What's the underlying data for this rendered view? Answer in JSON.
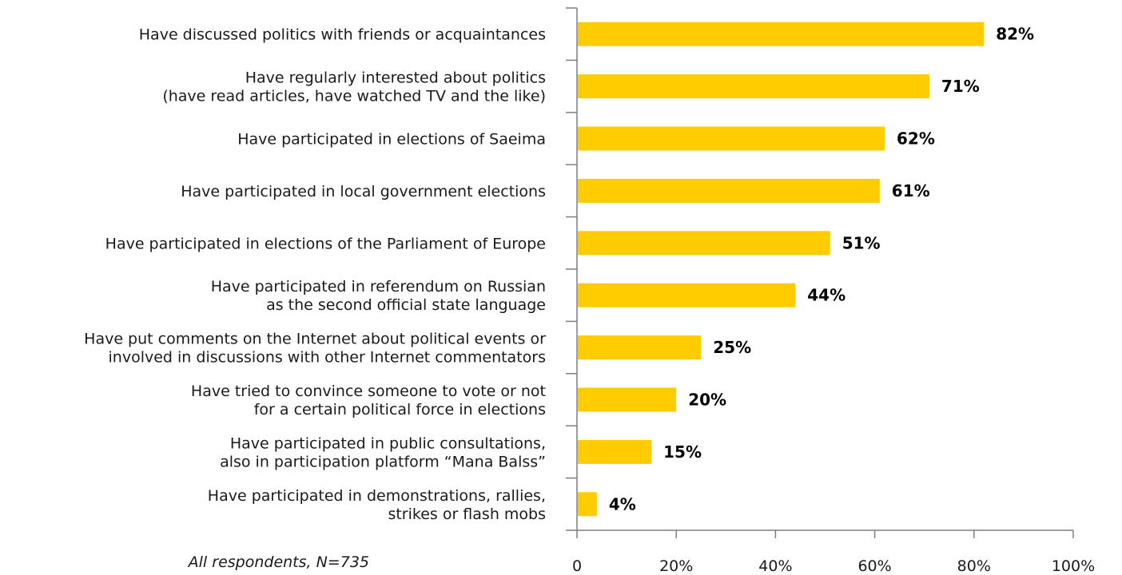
{
  "chart_data": {
    "type": "bar",
    "orientation": "horizontal",
    "categories": [
      [
        "Have discussed politics with friends or acquaintances"
      ],
      [
        "Have regularly interested about politics",
        "(have read articles, have watched TV and the like)"
      ],
      [
        "Have participated in elections of Saeima"
      ],
      [
        "Have participated in local government elections"
      ],
      [
        "Have participated in elections of the Parliament of Europe"
      ],
      [
        "Have participated in referendum on Russian",
        "as the second official state language"
      ],
      [
        "Have put comments on the Internet about political events or",
        "involved in discussions with other Internet commentators"
      ],
      [
        "Have tried to convince someone to vote or not",
        "for a certain political force in elections"
      ],
      [
        "Have participated in public consultations,",
        "also in participation platform “Mana Balss”"
      ],
      [
        "Have participated in demonstrations, rallies,",
        "strikes or flash mobs"
      ]
    ],
    "values": [
      82,
      71,
      62,
      61,
      51,
      44,
      25,
      20,
      15,
      4
    ],
    "value_labels": [
      "82%",
      "71%",
      "62%",
      "61%",
      "51%",
      "44%",
      "25%",
      "20%",
      "15%",
      "4%"
    ],
    "xlim": [
      0,
      100
    ],
    "x_ticks": [
      "0",
      "20%",
      "40%",
      "60%",
      "80%",
      "100%"
    ],
    "bar_color": "#FFCC00",
    "grid": false,
    "legend": "none"
  },
  "note": "All respondents, N=735"
}
